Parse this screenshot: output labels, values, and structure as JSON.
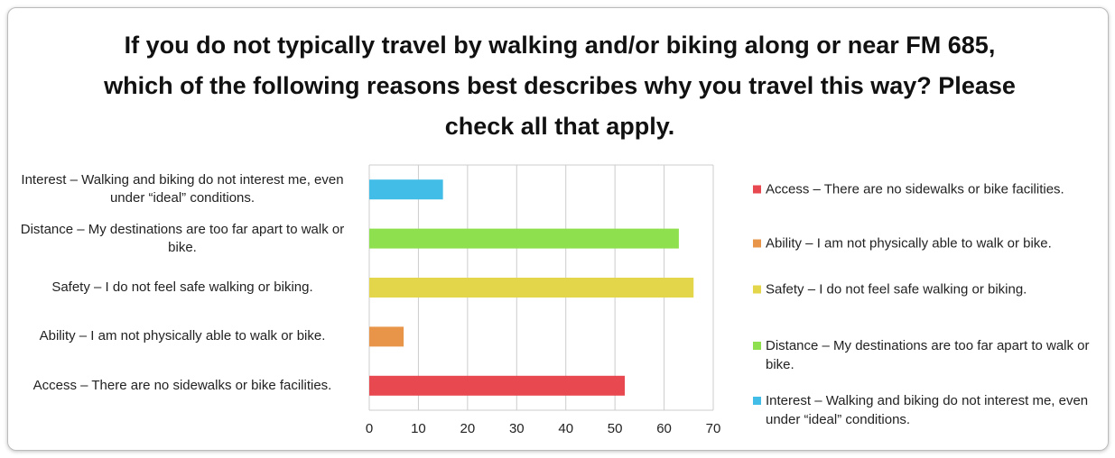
{
  "chart_data": {
    "type": "barh",
    "title": "If you do not typically travel by walking and/or biking along or near FM 685, which of the following reasons best describes why you travel this way? Please check all that apply.",
    "categories": [
      "Access – There are no sidewalks or bike facilities.",
      "Ability – I am not physically able to walk or bike.",
      "Safety – I do not feel safe walking or biking.",
      "Distance – My destinations are too far apart to walk or bike.",
      "Interest – Walking and biking do not interest me, even under “ideal” conditions."
    ],
    "values": [
      52,
      7,
      66,
      63,
      15
    ],
    "colors": [
      "#e8484f",
      "#e8954a",
      "#e4d64a",
      "#8ee04e",
      "#42bde8"
    ],
    "xlim": [
      0,
      70
    ],
    "xticks": [
      0,
      10,
      20,
      30,
      40,
      50,
      60,
      70
    ],
    "grid": true,
    "legend": "right"
  }
}
